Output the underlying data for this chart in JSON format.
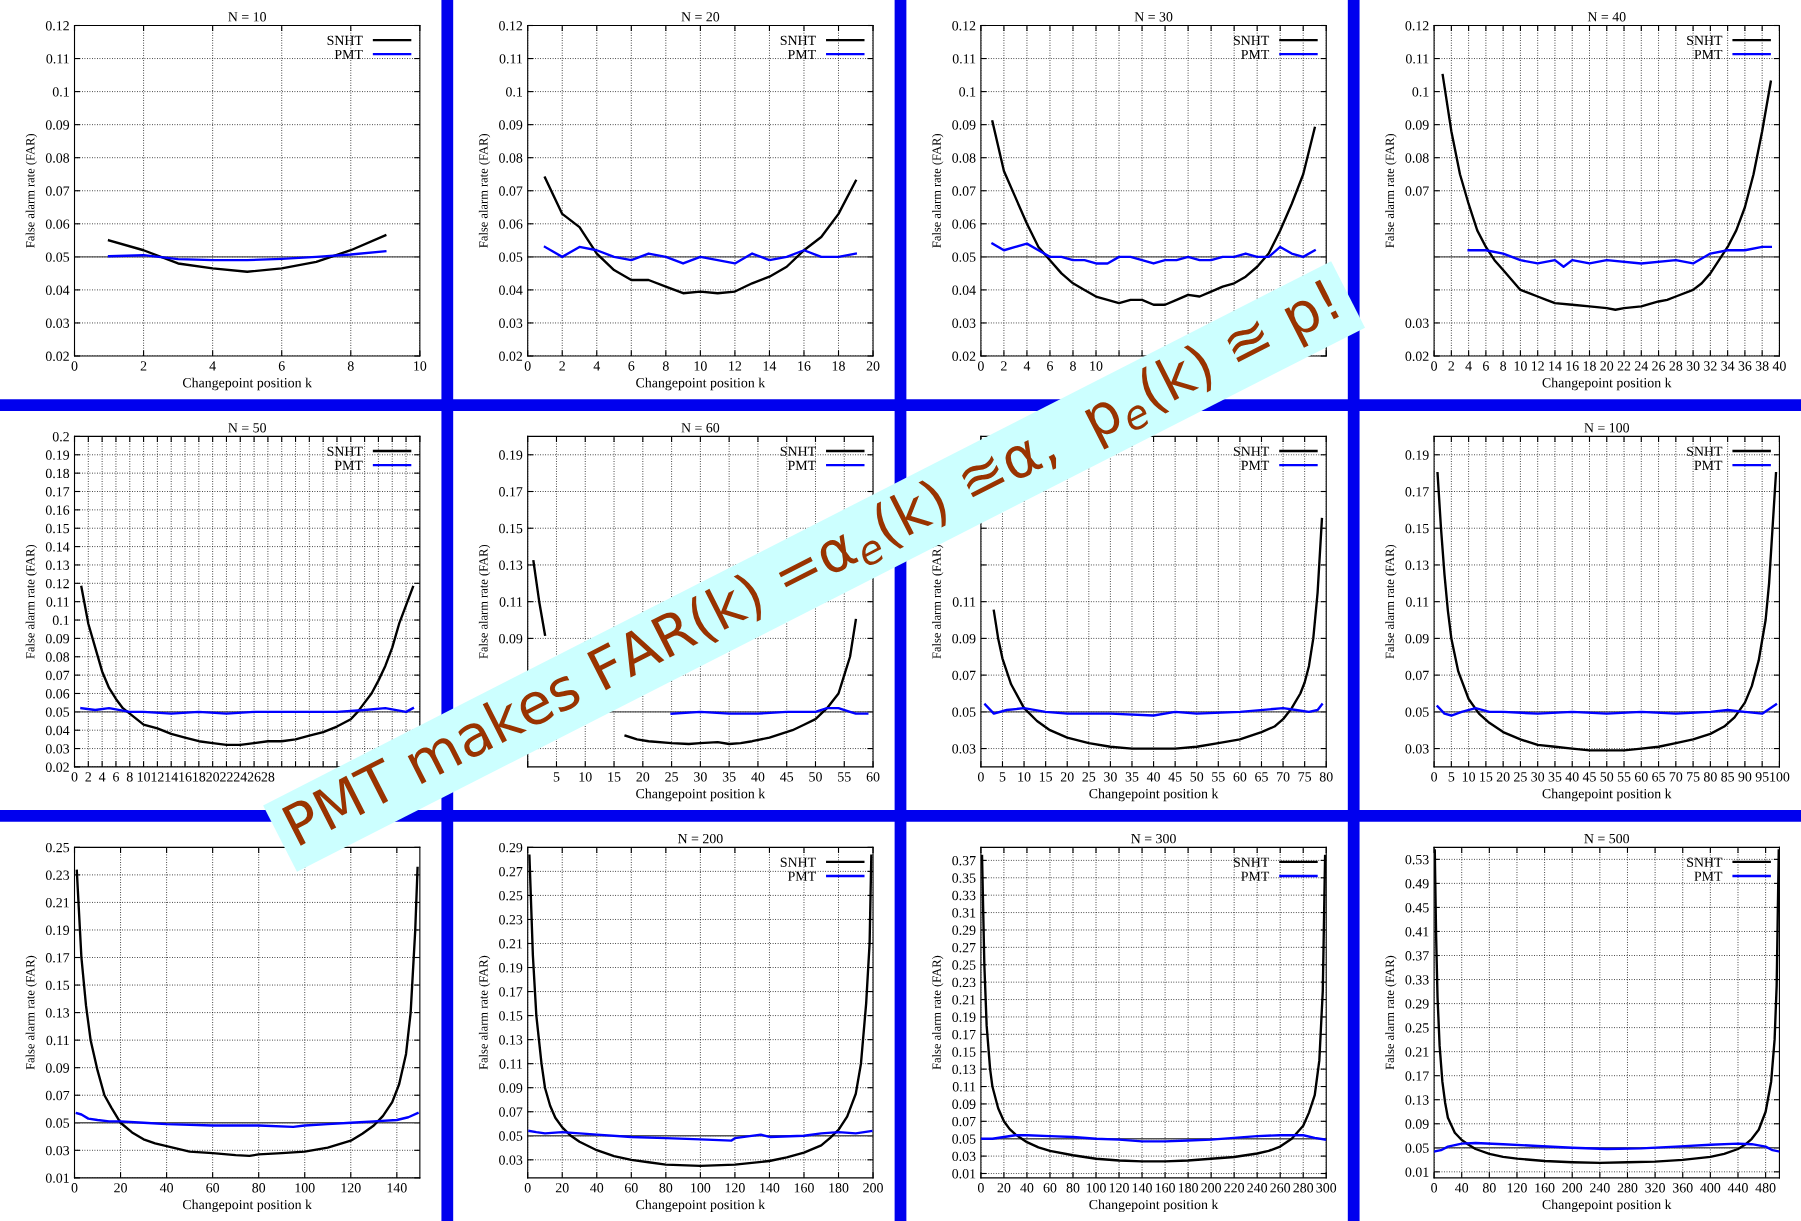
{
  "chart_data": [
    {
      "type": "line",
      "title": "N = 10",
      "xlabel": "Changepoint position k",
      "ylabel": "False alarm rate (FAR)",
      "xlim": [
        0,
        10
      ],
      "ylim": [
        0.02,
        0.12
      ],
      "xticks": [
        0,
        2,
        4,
        6,
        8,
        10
      ],
      "yticks": [
        0.02,
        0.03,
        0.04,
        0.05,
        0.06,
        0.07,
        0.08,
        0.09,
        0.1,
        0.11,
        0.12
      ],
      "grid": true,
      "legend": "top right",
      "ref_lines": [
        {
          "axis": "y",
          "value": 0.05,
          "color": "#555555"
        }
      ],
      "annotations": [
        "PMT makes FAR(k) =α$_{e}$(k) ≊α,  p$_{e}$(k) ≊ p!"
      ],
      "series": [
        {
          "name": "SNHT",
          "color": "#000000",
          "x": [
            1,
            2,
            3,
            4,
            5,
            6,
            7,
            8,
            9
          ],
          "values": [
            0.055,
            0.052,
            0.048,
            0.0465,
            0.0455,
            0.0465,
            0.0485,
            0.052,
            0.0565
          ]
        },
        {
          "name": "PMT",
          "color": "#0000ff",
          "x": [
            1,
            2,
            3,
            4,
            5,
            6,
            7,
            8,
            9
          ],
          "values": [
            0.0502,
            0.0505,
            0.0493,
            0.049,
            0.049,
            0.0494,
            0.05,
            0.0507,
            0.0517
          ]
        }
      ]
    },
    {
      "type": "line",
      "title": "N = 20",
      "xlabel": "Changepoint position k",
      "ylabel": "False alarm rate (FAR)",
      "xlim": [
        0,
        20
      ],
      "ylim": [
        0.02,
        0.12
      ],
      "xticks": [
        0,
        2,
        4,
        6,
        8,
        10,
        12,
        14,
        16,
        18,
        20
      ],
      "yticks": [
        0.02,
        0.03,
        0.04,
        0.05,
        0.06,
        0.07,
        0.08,
        0.09,
        0.1,
        0.11,
        0.12
      ],
      "grid": true,
      "legend": "top right",
      "ref_lines": [
        {
          "axis": "y",
          "value": 0.05,
          "color": "#555555"
        }
      ],
      "series": [
        {
          "name": "SNHT",
          "color": "#000000",
          "x": [
            1,
            2,
            3,
            4,
            5,
            6,
            7,
            8,
            9,
            10,
            11,
            12,
            13,
            14,
            15,
            16,
            17,
            18,
            19
          ],
          "values": [
            0.074,
            0.063,
            0.059,
            0.051,
            0.046,
            0.043,
            0.043,
            0.041,
            0.039,
            0.0395,
            0.039,
            0.0395,
            0.042,
            0.044,
            0.047,
            0.052,
            0.056,
            0.063,
            0.073
          ]
        },
        {
          "name": "PMT",
          "color": "#0000ff",
          "x": [
            1,
            2,
            3,
            4,
            5,
            6,
            7,
            8,
            9,
            10,
            11,
            12,
            13,
            14,
            15,
            16,
            17,
            18,
            19
          ],
          "values": [
            0.053,
            0.05,
            0.053,
            0.052,
            0.05,
            0.049,
            0.051,
            0.05,
            0.048,
            0.05,
            0.049,
            0.048,
            0.051,
            0.049,
            0.05,
            0.052,
            0.05,
            0.05,
            0.051
          ]
        }
      ]
    },
    {
      "type": "line",
      "title": "N = 30",
      "ylabel": "False alarm rate (FAR)",
      "xlim": [
        0,
        30
      ],
      "ylim": [
        0.02,
        0.12
      ],
      "xticks": [
        0,
        2,
        4,
        6,
        8,
        10,
        {
          "value": 12,
          "label": null
        },
        {
          "value": 14,
          "label": null
        },
        {
          "value": 16,
          "label": null
        },
        {
          "value": 18,
          "label": null
        },
        {
          "value": 20,
          "label": null
        },
        {
          "value": 22,
          "label": null
        },
        {
          "value": 24,
          "label": null
        },
        {
          "value": 26,
          "label": null
        },
        {
          "value": 28,
          "label": null
        },
        {
          "value": 30,
          "label": null
        }
      ],
      "yticks": [
        0.02,
        0.03,
        0.04,
        0.05,
        0.06,
        0.07,
        0.08,
        0.09,
        0.1,
        0.11,
        0.12
      ],
      "grid": true,
      "legend": "top right",
      "ref_lines": [
        {
          "axis": "y",
          "value": 0.05,
          "color": "#555555"
        }
      ],
      "series": [
        {
          "name": "SNHT",
          "color": "#000000",
          "x": [
            1,
            2,
            3,
            4,
            5,
            6,
            7,
            8,
            9,
            10,
            11,
            12,
            13,
            14,
            15,
            16,
            17,
            18,
            19,
            20,
            21,
            22,
            23,
            24,
            25,
            26,
            27,
            28,
            29
          ],
          "values": [
            0.091,
            0.076,
            0.068,
            0.06,
            0.053,
            0.049,
            0.045,
            0.042,
            0.04,
            0.038,
            0.037,
            0.036,
            0.037,
            0.037,
            0.0355,
            0.0355,
            0.037,
            0.0385,
            0.038,
            0.0395,
            0.041,
            0.042,
            0.044,
            0.047,
            0.051,
            0.058,
            0.066,
            0.075,
            0.089
          ]
        },
        {
          "name": "PMT",
          "color": "#0000ff",
          "x": [
            1,
            2,
            3,
            4,
            5,
            6,
            7,
            8,
            9,
            10,
            11,
            12,
            13,
            14,
            15,
            16,
            17,
            18,
            19,
            20,
            21,
            22,
            23,
            24,
            25,
            26,
            27,
            28,
            29
          ],
          "values": [
            0.054,
            0.052,
            0.053,
            0.054,
            0.052,
            0.05,
            0.05,
            0.049,
            0.049,
            0.048,
            0.048,
            0.05,
            0.05,
            0.049,
            0.048,
            0.049,
            0.049,
            0.05,
            0.049,
            0.049,
            0.05,
            0.05,
            0.051,
            0.05,
            0.05,
            0.053,
            0.051,
            0.05,
            0.052
          ]
        }
      ]
    },
    {
      "type": "line",
      "title": "N = 40",
      "xlabel": "Changepoint position k",
      "ylabel": "False alarm rate (FAR)",
      "xlim": [
        0,
        40
      ],
      "ylim": [
        0.02,
        0.12
      ],
      "xticks": [
        0,
        2,
        4,
        6,
        8,
        10,
        12,
        14,
        16,
        18,
        20,
        22,
        24,
        26,
        28,
        30,
        32,
        34,
        36,
        38,
        40
      ],
      "yticks": [
        0.02,
        0.03,
        {
          "value": 0.04,
          "label": null
        },
        {
          "value": 0.05,
          "label": null
        },
        {
          "value": 0.06,
          "label": null
        },
        0.07,
        0.08,
        0.09,
        0.1,
        0.11,
        0.12
      ],
      "grid": true,
      "legend": "top right",
      "ref_lines": [
        {
          "axis": "y",
          "value": 0.05,
          "color": "#555555"
        }
      ],
      "series": [
        {
          "name": "SNHT",
          "color": "#000000",
          "x": [
            1,
            2,
            3,
            4,
            5,
            6,
            7,
            8,
            9,
            10,
            11,
            12,
            13,
            14,
            16,
            18,
            20,
            21,
            22,
            24,
            26,
            27,
            28,
            30,
            31,
            32,
            33,
            34,
            35,
            36,
            37,
            38,
            39
          ],
          "values": [
            0.105,
            0.088,
            0.075,
            0.066,
            0.058,
            0.053,
            0.049,
            0.046,
            0.043,
            0.04,
            0.039,
            0.038,
            0.037,
            0.036,
            0.0355,
            0.035,
            0.0345,
            0.034,
            0.0345,
            0.035,
            0.0365,
            0.037,
            0.038,
            0.04,
            0.042,
            0.045,
            0.049,
            0.053,
            0.058,
            0.065,
            0.075,
            0.088,
            0.103
          ]
        },
        {
          "name": "PMT",
          "color": "#0000ff",
          "x": [
            4,
            6,
            8,
            10,
            12,
            14,
            15,
            16,
            18,
            20,
            24,
            28,
            30,
            32,
            34,
            36,
            38,
            39
          ],
          "values": [
            0.052,
            0.052,
            0.051,
            0.049,
            0.048,
            0.049,
            0.047,
            0.049,
            0.048,
            0.049,
            0.048,
            0.049,
            0.048,
            0.051,
            0.052,
            0.052,
            0.053,
            0.053
          ]
        }
      ]
    },
    {
      "type": "line",
      "title": "N = 50",
      "ylabel": "False alarm rate (FAR)",
      "xlim": [
        0,
        50
      ],
      "ylim": [
        0.02,
        0.2
      ],
      "xticks": [
        0,
        2,
        4,
        6,
        8,
        10,
        12,
        14,
        16,
        18,
        20,
        22,
        24,
        26,
        28,
        {
          "value": 30,
          "label": null
        },
        {
          "value": 32,
          "label": null
        },
        {
          "value": 34,
          "label": null
        },
        {
          "value": 36,
          "label": null
        },
        {
          "value": 38,
          "label": null
        },
        {
          "value": 40,
          "label": null
        },
        {
          "value": 42,
          "label": null
        },
        {
          "value": 44,
          "label": null
        },
        {
          "value": 46,
          "label": null
        },
        {
          "value": 48,
          "label": null
        },
        {
          "value": 50,
          "label": null
        }
      ],
      "yticks": [
        0.02,
        0.03,
        0.04,
        0.05,
        0.06,
        0.07,
        0.08,
        0.09,
        0.1,
        0.11,
        0.12,
        0.13,
        0.14,
        0.15,
        0.16,
        0.17,
        0.18,
        0.19,
        0.2
      ],
      "grid": true,
      "legend": "top right",
      "ref_lines": [
        {
          "axis": "y",
          "value": 0.05,
          "color": "#555555"
        }
      ],
      "series": [
        {
          "name": "SNHT",
          "color": "#000000",
          "x": [
            1,
            2,
            3,
            4,
            5,
            6,
            7,
            8,
            9,
            10,
            12,
            14,
            16,
            18,
            20,
            22,
            24,
            26,
            28,
            30,
            32,
            34,
            36,
            38,
            40,
            41,
            42,
            43,
            44,
            45,
            46,
            47,
            49
          ],
          "values": [
            0.118,
            0.098,
            0.085,
            0.072,
            0.063,
            0.057,
            0.052,
            0.049,
            0.046,
            0.043,
            0.041,
            0.038,
            0.036,
            0.034,
            0.033,
            0.032,
            0.032,
            0.033,
            0.034,
            0.034,
            0.035,
            0.037,
            0.039,
            0.042,
            0.046,
            0.05,
            0.055,
            0.06,
            0.067,
            0.075,
            0.085,
            0.098,
            0.118
          ]
        },
        {
          "name": "PMT",
          "color": "#0000ff",
          "x": [
            1,
            3,
            5,
            8,
            10,
            14,
            18,
            22,
            26,
            30,
            34,
            38,
            42,
            45,
            48,
            49
          ],
          "values": [
            0.052,
            0.051,
            0.052,
            0.05,
            0.05,
            0.049,
            0.05,
            0.049,
            0.05,
            0.05,
            0.05,
            0.05,
            0.051,
            0.052,
            0.05,
            0.052
          ]
        }
      ]
    },
    {
      "type": "line",
      "title": "N = 60",
      "xlabel": "Changepoint position k",
      "ylabel": "False alarm rate (FAR)",
      "xlim": [
        0,
        60
      ],
      "ylim": [
        0.02,
        0.2
      ],
      "xticks": [
        {
          "value": 0,
          "label": null
        },
        5,
        10,
        15,
        20,
        25,
        30,
        35,
        40,
        45,
        50,
        55,
        60
      ],
      "yticks": [
        {
          "value": 0.03,
          "label": null
        },
        {
          "value": 0.05,
          "label": null
        },
        {
          "value": 0.07,
          "label": null
        },
        0.09,
        0.11,
        0.13,
        0.15,
        0.17,
        0.19
      ],
      "grid": true,
      "legend": "top right",
      "ref_lines": [
        {
          "axis": "y",
          "value": 0.05,
          "color": "#555555"
        }
      ],
      "series": [
        {
          "name": "SNHT",
          "color": "#000000",
          "x": [
            1,
            2,
            3,
            4,
            5,
            7,
            10,
            13,
            15,
            17,
            19,
            21,
            25,
            28,
            30,
            33,
            35,
            37,
            39,
            42,
            44,
            46,
            48,
            50,
            52,
            54,
            55,
            56,
            57
          ],
          "values": [
            0.132,
            0.11,
            0.092,
            null,
            null,
            null,
            null,
            null,
            null,
            0.037,
            0.035,
            0.034,
            0.033,
            0.0325,
            0.033,
            0.0335,
            0.0325,
            0.033,
            0.034,
            0.036,
            0.038,
            0.04,
            0.043,
            0.046,
            0.052,
            0.06,
            0.07,
            0.08,
            0.1
          ]
        },
        {
          "name": "PMT",
          "color": "#0000ff",
          "x": [
            25,
            30,
            35,
            40,
            45,
            50,
            52,
            54,
            56,
            57,
            59
          ],
          "values": [
            0.049,
            0.05,
            0.049,
            0.049,
            0.05,
            0.05,
            0.052,
            0.052,
            0.05,
            0.049,
            0.049
          ]
        }
      ]
    },
    {
      "type": "line",
      "xlabel": "Changepoint position k",
      "ylabel": "False alarm rate (FAR)",
      "xlim": [
        0,
        80
      ],
      "ylim": [
        0.02,
        0.2
      ],
      "xticks": [
        0,
        5,
        10,
        15,
        20,
        25,
        30,
        35,
        40,
        45,
        50,
        55,
        60,
        65,
        70,
        75,
        80
      ],
      "yticks": [
        0.03,
        0.05,
        0.07,
        0.09,
        0.11,
        {
          "value": 0.13,
          "label": null
        },
        {
          "value": 0.15,
          "label": null
        },
        {
          "value": 0.17,
          "label": null
        },
        {
          "value": 0.19,
          "label": null
        }
      ],
      "grid": true,
      "legend": "top right",
      "ref_lines": [
        {
          "axis": "y",
          "value": 0.05,
          "color": "#555555"
        }
      ],
      "series": [
        {
          "name": "SNHT",
          "color": "#000000",
          "x": [
            3,
            4,
            5,
            7,
            10,
            13,
            16,
            20,
            25,
            30,
            35,
            40,
            45,
            50,
            55,
            60,
            65,
            68,
            70,
            72,
            74,
            75,
            76,
            77,
            78,
            79
          ],
          "values": [
            0.105,
            0.09,
            0.079,
            0.065,
            0.052,
            0.045,
            0.04,
            0.036,
            0.033,
            0.031,
            0.03,
            0.03,
            0.03,
            0.031,
            0.033,
            0.035,
            0.039,
            0.042,
            0.046,
            0.052,
            0.06,
            0.066,
            0.075,
            0.09,
            0.115,
            0.155
          ]
        },
        {
          "name": "PMT",
          "color": "#0000ff",
          "x": [
            1,
            3,
            6,
            10,
            15,
            20,
            30,
            40,
            45,
            50,
            60,
            70,
            73,
            76,
            78,
            79
          ],
          "values": [
            0.054,
            0.049,
            0.051,
            0.052,
            0.05,
            0.049,
            0.049,
            0.048,
            0.05,
            0.049,
            0.05,
            0.052,
            0.051,
            0.05,
            0.051,
            0.054
          ]
        }
      ]
    },
    {
      "type": "line",
      "title": "N = 100",
      "xlabel": "Changepoint position k",
      "ylabel": "False alarm rate (FAR)",
      "xlim": [
        0,
        100
      ],
      "ylim": [
        0.02,
        0.2
      ],
      "xticks": [
        0,
        5,
        10,
        15,
        20,
        25,
        30,
        35,
        40,
        45,
        50,
        55,
        60,
        65,
        70,
        75,
        80,
        85,
        90,
        95,
        100
      ],
      "yticks": [
        0.03,
        0.05,
        0.07,
        0.09,
        0.11,
        0.13,
        0.15,
        0.17,
        0.19
      ],
      "grid": true,
      "legend": "top right",
      "ref_lines": [
        {
          "axis": "y",
          "value": 0.05,
          "color": "#555555"
        }
      ],
      "series": [
        {
          "name": "SNHT",
          "color": "#000000",
          "x": [
            1,
            2,
            3,
            4,
            5,
            7,
            10,
            13,
            16,
            20,
            25,
            30,
            35,
            40,
            45,
            50,
            55,
            60,
            65,
            70,
            75,
            80,
            84,
            87,
            90,
            92,
            94,
            96,
            97,
            98,
            99
          ],
          "values": [
            0.18,
            0.15,
            0.125,
            0.105,
            0.09,
            0.072,
            0.057,
            0.049,
            0.044,
            0.039,
            0.035,
            0.032,
            0.031,
            0.03,
            0.029,
            0.029,
            0.029,
            0.03,
            0.031,
            0.033,
            0.035,
            0.038,
            0.042,
            0.047,
            0.055,
            0.064,
            0.078,
            0.1,
            0.12,
            0.15,
            0.18
          ]
        },
        {
          "name": "PMT",
          "color": "#0000ff",
          "x": [
            1,
            3,
            5,
            8,
            12,
            16,
            20,
            30,
            40,
            50,
            60,
            70,
            80,
            85,
            90,
            95,
            99
          ],
          "values": [
            0.053,
            0.049,
            0.048,
            0.05,
            0.052,
            0.05,
            0.05,
            0.049,
            0.05,
            0.049,
            0.05,
            0.049,
            0.05,
            0.051,
            0.05,
            0.049,
            0.054
          ]
        }
      ]
    },
    {
      "type": "line",
      "xlabel": "Changepoint position k",
      "ylabel": "False alarm rate (FAR)",
      "xlim": [
        0,
        150
      ],
      "ylim": [
        0.01,
        0.25
      ],
      "xticks": [
        0,
        20,
        40,
        60,
        80,
        100,
        120,
        140
      ],
      "yticks": [
        0.01,
        0.03,
        0.05,
        0.07,
        0.09,
        0.11,
        0.13,
        0.15,
        0.17,
        0.19,
        0.21,
        0.23,
        0.25
      ],
      "grid": true,
      "ref_lines": [
        {
          "axis": "y",
          "value": 0.05,
          "color": "#555555"
        }
      ],
      "series": [
        {
          "color": "#000000",
          "x": [
            1,
            3,
            5,
            7,
            10,
            13,
            16,
            20,
            25,
            30,
            35,
            40,
            45,
            50,
            60,
            70,
            76,
            80,
            90,
            100,
            110,
            120,
            125,
            130,
            134,
            138,
            141,
            144,
            146,
            148,
            149
          ],
          "values": [
            0.233,
            0.17,
            0.135,
            0.11,
            0.088,
            0.07,
            0.061,
            0.05,
            0.043,
            0.038,
            0.035,
            0.033,
            0.031,
            0.029,
            0.028,
            0.0265,
            0.026,
            0.027,
            0.028,
            0.029,
            0.032,
            0.037,
            0.042,
            0.048,
            0.055,
            0.065,
            0.078,
            0.1,
            0.13,
            0.19,
            0.235
          ]
        },
        {
          "color": "#0000ff",
          "x": [
            1,
            3,
            6,
            10,
            15,
            20,
            30,
            40,
            60,
            80,
            95,
            100,
            110,
            120,
            130,
            140,
            145,
            149
          ],
          "values": [
            0.057,
            0.056,
            0.053,
            0.052,
            0.051,
            0.051,
            0.05,
            0.049,
            0.048,
            0.048,
            0.047,
            0.048,
            0.049,
            0.05,
            0.051,
            0.052,
            0.054,
            0.057
          ]
        }
      ]
    },
    {
      "type": "line",
      "title": "N = 200",
      "xlabel": "Changepoint position k",
      "ylabel": "False alarm rate (FAR)",
      "xlim": [
        0,
        200
      ],
      "ylim": [
        0.015,
        0.29
      ],
      "xticks": [
        0,
        20,
        40,
        60,
        80,
        100,
        120,
        140,
        160,
        180,
        200
      ],
      "yticks": [
        0.03,
        0.05,
        0.07,
        0.09,
        0.11,
        0.13,
        0.15,
        0.17,
        0.19,
        0.21,
        0.23,
        0.25,
        0.27,
        0.29
      ],
      "grid": true,
      "legend": "top right",
      "ref_lines": [
        {
          "axis": "y",
          "value": 0.05,
          "color": "#555555"
        }
      ],
      "series": [
        {
          "name": "SNHT",
          "color": "#000000",
          "x": [
            1,
            3,
            5,
            8,
            10,
            13,
            16,
            20,
            25,
            30,
            40,
            50,
            60,
            70,
            80,
            100,
            120,
            140,
            150,
            160,
            170,
            175,
            180,
            185,
            190,
            193,
            196,
            198,
            199
          ],
          "values": [
            0.283,
            0.2,
            0.15,
            0.11,
            0.09,
            0.075,
            0.065,
            0.057,
            0.05,
            0.045,
            0.038,
            0.033,
            0.03,
            0.028,
            0.026,
            0.025,
            0.026,
            0.029,
            0.032,
            0.036,
            0.042,
            0.048,
            0.055,
            0.066,
            0.085,
            0.11,
            0.16,
            0.21,
            0.283
          ]
        },
        {
          "name": "PMT",
          "color": "#0000ff",
          "x": [
            1,
            5,
            10,
            20,
            40,
            60,
            80,
            100,
            118,
            120,
            135,
            140,
            160,
            170,
            180,
            190,
            199
          ],
          "values": [
            0.054,
            0.053,
            0.052,
            0.053,
            0.051,
            0.049,
            0.048,
            0.047,
            0.046,
            0.048,
            0.051,
            0.049,
            0.05,
            0.052,
            0.053,
            0.052,
            0.054
          ]
        }
      ]
    },
    {
      "type": "line",
      "title": "N = 300",
      "xlabel": "Changepoint position k",
      "ylabel": "False alarm rate (FAR)",
      "xlim": [
        0,
        300
      ],
      "ylim": [
        0.005,
        0.385
      ],
      "xticks": [
        0,
        20,
        40,
        60,
        80,
        100,
        120,
        140,
        160,
        180,
        200,
        220,
        240,
        260,
        280,
        300
      ],
      "yticks": [
        0.01,
        0.03,
        0.05,
        0.07,
        0.09,
        0.11,
        0.13,
        0.15,
        0.17,
        0.19,
        0.21,
        0.23,
        0.25,
        0.27,
        0.29,
        0.31,
        0.33,
        0.35,
        0.37
      ],
      "grid": true,
      "legend": "top right",
      "ref_lines": [
        {
          "axis": "y",
          "value": 0.05,
          "color": "#555555"
        }
      ],
      "series": [
        {
          "name": "SNHT",
          "color": "#000000",
          "x": [
            1,
            3,
            5,
            8,
            10,
            15,
            20,
            25,
            30,
            40,
            50,
            60,
            80,
            100,
            120,
            140,
            160,
            180,
            200,
            220,
            240,
            250,
            260,
            270,
            280,
            285,
            290,
            294,
            297,
            299
          ],
          "values": [
            0.375,
            0.25,
            0.18,
            0.13,
            0.11,
            0.085,
            0.07,
            0.061,
            0.055,
            0.046,
            0.04,
            0.036,
            0.031,
            0.027,
            0.025,
            0.024,
            0.024,
            0.025,
            0.027,
            0.029,
            0.033,
            0.036,
            0.041,
            0.05,
            0.065,
            0.08,
            0.1,
            0.14,
            0.22,
            0.375
          ]
        },
        {
          "name": "PMT",
          "color": "#0000ff",
          "x": [
            1,
            10,
            20,
            30,
            40,
            60,
            80,
            100,
            120,
            140,
            160,
            180,
            200,
            220,
            240,
            260,
            280,
            290,
            299
          ],
          "values": [
            0.05,
            0.05,
            0.052,
            0.054,
            0.054,
            0.053,
            0.052,
            0.05,
            0.049,
            0.047,
            0.047,
            0.048,
            0.049,
            0.051,
            0.053,
            0.054,
            0.054,
            0.051,
            0.049
          ]
        }
      ]
    },
    {
      "type": "line",
      "title": "N = 500",
      "xlabel": "Changepoint position k",
      "ylabel": "False alarm rate (FAR)",
      "xlim": [
        0,
        500
      ],
      "ylim": [
        0,
        0.55
      ],
      "xticks": [
        0,
        40,
        80,
        120,
        160,
        200,
        240,
        280,
        320,
        360,
        400,
        440,
        480
      ],
      "yticks": [
        0.01,
        0.05,
        0.09,
        0.13,
        0.17,
        0.21,
        0.25,
        0.29,
        0.33,
        0.37,
        0.41,
        0.45,
        0.49,
        0.53
      ],
      "grid": true,
      "legend": "top right",
      "ref_lines": [
        {
          "axis": "y",
          "value": 0.05,
          "color": "#555555"
        }
      ],
      "series": [
        {
          "name": "SNHT",
          "color": "#000000",
          "x": [
            1,
            3,
            5,
            8,
            12,
            16,
            20,
            30,
            40,
            50,
            60,
            80,
            100,
            120,
            160,
            200,
            240,
            280,
            320,
            360,
            400,
            420,
            440,
            450,
            460,
            470,
            480,
            488,
            493,
            496,
            499
          ],
          "values": [
            0.545,
            0.4,
            0.3,
            0.22,
            0.16,
            0.125,
            0.1,
            0.075,
            0.063,
            0.055,
            0.048,
            0.04,
            0.035,
            0.032,
            0.028,
            0.026,
            0.025,
            0.026,
            0.027,
            0.03,
            0.035,
            0.04,
            0.048,
            0.055,
            0.065,
            0.08,
            0.11,
            0.16,
            0.23,
            0.32,
            0.545
          ]
        },
        {
          "name": "PMT",
          "color": "#0000ff",
          "x": [
            1,
            10,
            20,
            40,
            60,
            100,
            150,
            200,
            250,
            300,
            350,
            400,
            440,
            460,
            480,
            490,
            499
          ],
          "values": [
            0.044,
            0.046,
            0.052,
            0.057,
            0.058,
            0.056,
            0.053,
            0.05,
            0.048,
            0.049,
            0.052,
            0.055,
            0.057,
            0.056,
            0.052,
            0.046,
            0.044
          ]
        }
      ]
    }
  ]
}
